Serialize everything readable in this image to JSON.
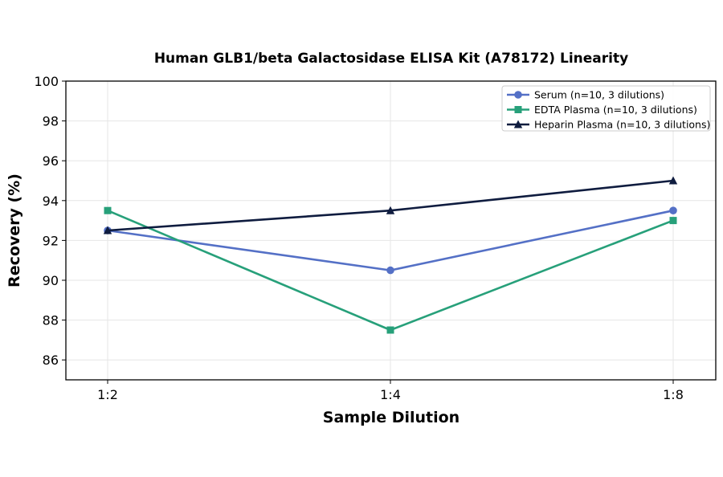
{
  "chart_data": {
    "type": "line",
    "title": "Human GLB1/beta Galactosidase ELISA Kit (A78172) Linearity",
    "xlabel": "Sample Dilution",
    "ylabel": "Recovery (%)",
    "categories": [
      "1:2",
      "1:4",
      "1:8"
    ],
    "ylim": [
      85,
      100
    ],
    "yticks": [
      86,
      88,
      90,
      92,
      94,
      96,
      98,
      100
    ],
    "grid": true,
    "legend_position": "top-right",
    "series": [
      {
        "name": "Serum (n=10, 3 dilutions)",
        "values": [
          92.5,
          90.5,
          93.5
        ],
        "color": "#5470c6",
        "marker": "circle"
      },
      {
        "name": "EDTA Plasma (n=10, 3 dilutions)",
        "values": [
          93.5,
          87.5,
          93.0
        ],
        "color": "#27a07a",
        "marker": "square"
      },
      {
        "name": "Heparin Plasma (n=10, 3 dilutions)",
        "values": [
          92.5,
          93.5,
          95.0
        ],
        "color": "#0f1c3f",
        "marker": "triangle"
      }
    ]
  }
}
